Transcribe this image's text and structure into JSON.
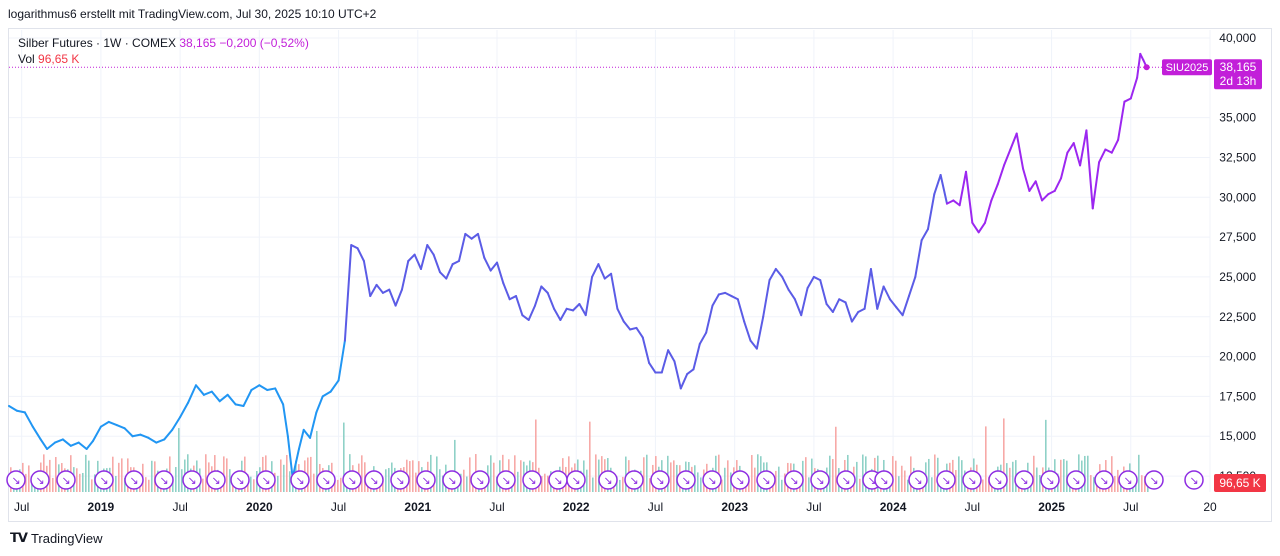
{
  "caption": "logarithmus6 erstellt mit TradingView.com, Jul 30, 2025 10:10 UTC+2",
  "legend": {
    "symbol_line": "Silber Futures · 1W · COMEX",
    "last": "38,165",
    "change": "−0,200 (−0,52%)",
    "vol_label": "Vol",
    "vol_value": "96,65 K"
  },
  "price_label": {
    "ticker": "SIU2025",
    "price": "38,165",
    "countdown": "2d 13h",
    "vol": "96,65 K"
  },
  "footer": {
    "brand": "TradingView"
  },
  "colors": {
    "line_early": "#2196f3",
    "line_mid": "#5b5ce6",
    "line_late": "#9c27f0",
    "marker": "#c21fd9",
    "vol_up": "#8fd1c7",
    "vol_down": "#f7a9a7",
    "event_marker": "#8e2de2"
  },
  "chart_data": {
    "type": "line",
    "title": "Silber Futures · 1W · COMEX",
    "ylabel": "",
    "ylim": [
      11500,
      40500
    ],
    "y_ticks": [
      "12,500",
      "15,000",
      "17,500",
      "20,000",
      "22,500",
      "25,000",
      "27,500",
      "30,000",
      "32,500",
      "35,000",
      "40,000"
    ],
    "x_ticks": [
      "Jul",
      "2019",
      "Jul",
      "2020",
      "Jul",
      "2021",
      "Jul",
      "2022",
      "Jul",
      "2023",
      "Jul",
      "2024",
      "Jul",
      "2025",
      "Jul",
      "20"
    ],
    "x_range": [
      2018.42,
      2026.0
    ],
    "grid": true,
    "series": [
      {
        "values": [
          [
            2018.42,
            16.9
          ],
          [
            2018.47,
            16.6
          ],
          [
            2018.52,
            16.5
          ],
          [
            2018.57,
            15.6
          ],
          [
            2018.62,
            14.8
          ],
          [
            2018.66,
            14.2
          ],
          [
            2018.71,
            14.6
          ],
          [
            2018.76,
            14.8
          ],
          [
            2018.81,
            14.4
          ],
          [
            2018.86,
            14.6
          ],
          [
            2018.91,
            14.2
          ],
          [
            2018.95,
            14.7
          ],
          [
            2019.0,
            15.6
          ],
          [
            2019.05,
            15.9
          ],
          [
            2019.1,
            15.7
          ],
          [
            2019.15,
            15.5
          ],
          [
            2019.2,
            15.0
          ],
          [
            2019.25,
            15.1
          ],
          [
            2019.3,
            14.9
          ],
          [
            2019.35,
            14.6
          ],
          [
            2019.4,
            14.8
          ],
          [
            2019.45,
            15.4
          ],
          [
            2019.5,
            16.2
          ],
          [
            2019.55,
            17.1
          ],
          [
            2019.6,
            18.2
          ],
          [
            2019.65,
            17.6
          ],
          [
            2019.7,
            17.8
          ],
          [
            2019.75,
            17.2
          ],
          [
            2019.8,
            17.6
          ],
          [
            2019.85,
            17.0
          ],
          [
            2019.9,
            16.9
          ],
          [
            2019.95,
            17.9
          ],
          [
            2020.0,
            18.2
          ],
          [
            2020.05,
            17.9
          ],
          [
            2020.1,
            18.0
          ],
          [
            2020.15,
            17.0
          ],
          [
            2020.18,
            15.0
          ],
          [
            2020.21,
            12.4
          ],
          [
            2020.25,
            14.2
          ],
          [
            2020.28,
            15.4
          ],
          [
            2020.32,
            14.9
          ],
          [
            2020.36,
            16.5
          ],
          [
            2020.4,
            17.5
          ],
          [
            2020.45,
            17.8
          ],
          [
            2020.5,
            18.5
          ],
          [
            2020.54,
            21.0
          ],
          [
            2020.58,
            27.0
          ],
          [
            2020.62,
            26.8
          ],
          [
            2020.66,
            26.0
          ],
          [
            2020.7,
            23.8
          ],
          [
            2020.74,
            24.5
          ],
          [
            2020.78,
            24.0
          ],
          [
            2020.82,
            24.2
          ],
          [
            2020.86,
            23.2
          ],
          [
            2020.9,
            24.2
          ],
          [
            2020.94,
            26.0
          ],
          [
            2020.98,
            26.4
          ],
          [
            2021.02,
            25.5
          ],
          [
            2021.06,
            27.0
          ],
          [
            2021.1,
            26.4
          ],
          [
            2021.14,
            25.3
          ],
          [
            2021.18,
            24.9
          ],
          [
            2021.22,
            25.8
          ],
          [
            2021.26,
            26.0
          ],
          [
            2021.3,
            27.7
          ],
          [
            2021.34,
            27.4
          ],
          [
            2021.38,
            27.7
          ],
          [
            2021.42,
            26.2
          ],
          [
            2021.46,
            25.4
          ],
          [
            2021.5,
            25.9
          ],
          [
            2021.54,
            24.6
          ],
          [
            2021.58,
            23.6
          ],
          [
            2021.62,
            23.8
          ],
          [
            2021.66,
            22.6
          ],
          [
            2021.7,
            22.3
          ],
          [
            2021.74,
            23.2
          ],
          [
            2021.78,
            24.4
          ],
          [
            2021.82,
            24.0
          ],
          [
            2021.86,
            23.0
          ],
          [
            2021.9,
            22.3
          ],
          [
            2021.94,
            23.0
          ],
          [
            2021.98,
            22.9
          ],
          [
            2022.02,
            23.3
          ],
          [
            2022.06,
            22.6
          ],
          [
            2022.1,
            25.0
          ],
          [
            2022.14,
            25.8
          ],
          [
            2022.18,
            24.9
          ],
          [
            2022.22,
            25.2
          ],
          [
            2022.26,
            23.0
          ],
          [
            2022.3,
            22.2
          ],
          [
            2022.34,
            21.7
          ],
          [
            2022.38,
            21.8
          ],
          [
            2022.42,
            21.2
          ],
          [
            2022.46,
            19.6
          ],
          [
            2022.5,
            19.0
          ],
          [
            2022.54,
            19.0
          ],
          [
            2022.58,
            20.4
          ],
          [
            2022.62,
            19.7
          ],
          [
            2022.66,
            18.0
          ],
          [
            2022.7,
            18.9
          ],
          [
            2022.74,
            19.2
          ],
          [
            2022.78,
            20.8
          ],
          [
            2022.82,
            21.5
          ],
          [
            2022.86,
            23.2
          ],
          [
            2022.9,
            23.9
          ],
          [
            2022.94,
            24.0
          ],
          [
            2022.98,
            23.8
          ],
          [
            2023.02,
            23.6
          ],
          [
            2023.06,
            22.2
          ],
          [
            2023.1,
            21.0
          ],
          [
            2023.14,
            20.5
          ],
          [
            2023.18,
            22.5
          ],
          [
            2023.22,
            24.8
          ],
          [
            2023.26,
            25.5
          ],
          [
            2023.3,
            25.0
          ],
          [
            2023.34,
            24.2
          ],
          [
            2023.38,
            23.6
          ],
          [
            2023.42,
            22.6
          ],
          [
            2023.46,
            24.3
          ],
          [
            2023.5,
            25.0
          ],
          [
            2023.54,
            24.8
          ],
          [
            2023.58,
            23.3
          ],
          [
            2023.62,
            22.8
          ],
          [
            2023.66,
            23.6
          ],
          [
            2023.7,
            23.4
          ],
          [
            2023.74,
            22.2
          ],
          [
            2023.78,
            22.8
          ],
          [
            2023.82,
            23.0
          ],
          [
            2023.86,
            25.5
          ],
          [
            2023.9,
            23.0
          ],
          [
            2023.94,
            24.4
          ],
          [
            2023.98,
            23.6
          ],
          [
            2024.02,
            23.1
          ],
          [
            2024.06,
            22.6
          ],
          [
            2024.1,
            23.8
          ],
          [
            2024.14,
            25.0
          ],
          [
            2024.18,
            27.3
          ],
          [
            2024.22,
            28.0
          ],
          [
            2024.26,
            30.2
          ],
          [
            2024.3,
            31.4
          ],
          [
            2024.34,
            29.6
          ],
          [
            2024.38,
            29.8
          ],
          [
            2024.42,
            29.5
          ],
          [
            2024.46,
            31.6
          ],
          [
            2024.5,
            28.4
          ],
          [
            2024.54,
            27.8
          ],
          [
            2024.58,
            28.4
          ],
          [
            2024.62,
            29.8
          ],
          [
            2024.66,
            30.8
          ],
          [
            2024.7,
            32.0
          ],
          [
            2024.74,
            33.0
          ],
          [
            2024.78,
            34.0
          ],
          [
            2024.82,
            31.8
          ],
          [
            2024.86,
            30.4
          ],
          [
            2024.9,
            31.0
          ],
          [
            2024.94,
            29.8
          ],
          [
            2024.98,
            30.2
          ],
          [
            2025.02,
            30.4
          ],
          [
            2025.06,
            31.2
          ],
          [
            2025.1,
            32.8
          ],
          [
            2025.14,
            33.4
          ],
          [
            2025.18,
            32.0
          ],
          [
            2025.22,
            34.2
          ],
          [
            2025.26,
            29.3
          ],
          [
            2025.3,
            32.2
          ],
          [
            2025.34,
            33.0
          ],
          [
            2025.38,
            32.8
          ],
          [
            2025.42,
            33.6
          ],
          [
            2025.46,
            36.0
          ],
          [
            2025.5,
            36.2
          ],
          [
            2025.54,
            37.5
          ],
          [
            2025.56,
            39.0
          ],
          [
            2025.58,
            38.6
          ],
          [
            2025.6,
            38.165
          ]
        ]
      }
    ]
  }
}
